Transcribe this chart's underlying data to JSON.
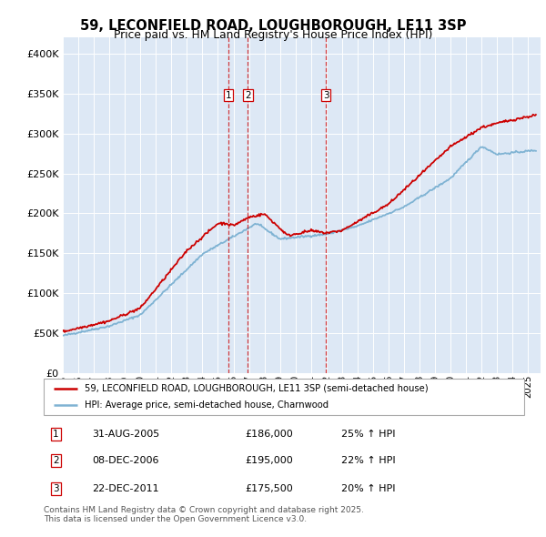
{
  "title": "59, LECONFIELD ROAD, LOUGHBOROUGH, LE11 3SP",
  "subtitle": "Price paid vs. HM Land Registry's House Price Index (HPI)",
  "legend_line1": "59, LECONFIELD ROAD, LOUGHBOROUGH, LE11 3SP (semi-detached house)",
  "legend_line2": "HPI: Average price, semi-detached house, Charnwood",
  "footer": "Contains HM Land Registry data © Crown copyright and database right 2025.\nThis data is licensed under the Open Government Licence v3.0.",
  "sale_color": "#cc0000",
  "hpi_color": "#7fb3d3",
  "bg_color": "#dde8f5",
  "ylim": [
    0,
    420000
  ],
  "yticks": [
    0,
    50000,
    100000,
    150000,
    200000,
    250000,
    300000,
    350000,
    400000
  ],
  "annotations": [
    {
      "num": "1",
      "date": "31-AUG-2005",
      "price": "£186,000",
      "pct": "25% ↑ HPI",
      "x_year": 2005.66
    },
    {
      "num": "2",
      "date": "08-DEC-2006",
      "price": "£195,000",
      "pct": "22% ↑ HPI",
      "x_year": 2006.93
    },
    {
      "num": "3",
      "date": "22-DEC-2011",
      "price": "£175,500",
      "pct": "20% ↑ HPI",
      "x_year": 2011.97
    }
  ],
  "xmin": 1995.0,
  "xmax": 2025.8
}
